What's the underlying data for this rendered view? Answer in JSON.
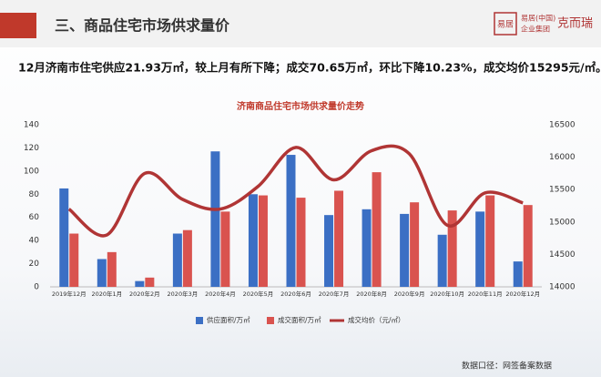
{
  "header": {
    "title": "三、商品住宅市场供求量价",
    "logo_mark": "易居",
    "logo_group": "易居(中国)",
    "logo_group2": "企业集团",
    "logo_brand": "克而瑞"
  },
  "summary": "12月济南市住宅供应21.93万㎡，较上月有所下降；成交70.65万㎡，环比下降10.23%，成交均价15295元/㎡。",
  "chart_data": {
    "type": "bar",
    "title": "济南商品住宅市场供求量价走势",
    "categories": [
      "2019年12月",
      "2020年1月",
      "2020年2月",
      "2020年3月",
      "2020年4月",
      "2020年5月",
      "2020年6月",
      "2020年7月",
      "2020年8月",
      "2020年9月",
      "2020年10月",
      "2020年11月",
      "2020年12月"
    ],
    "series": [
      {
        "name": "供应面积/万㎡",
        "color": "#3b6fc4",
        "values": [
          85,
          24,
          5,
          46,
          117,
          80,
          114,
          62,
          67,
          63,
          45,
          65,
          21.93
        ]
      },
      {
        "name": "成交面积/万㎡",
        "color": "#d9534f",
        "values": [
          46,
          30,
          8,
          49,
          65,
          79,
          77,
          83,
          99,
          73,
          66,
          79,
          70.65
        ]
      },
      {
        "name": "成交均价（元/㎡）",
        "color": "#b03535",
        "type": "line",
        "axis": "y2",
        "values": [
          15200,
          14800,
          15750,
          15350,
          15200,
          15550,
          16150,
          15650,
          16100,
          16050,
          14950,
          15450,
          15295
        ]
      }
    ],
    "ylim": [
      0,
      140
    ],
    "yticks": [
      0,
      20,
      40,
      60,
      80,
      100,
      120,
      140
    ],
    "y2lim": [
      14000,
      16500
    ],
    "y2ticks": [
      14000,
      14500,
      15000,
      15500,
      16000,
      16500
    ],
    "grid": false
  },
  "footer": "数据口径：网签备案数据"
}
